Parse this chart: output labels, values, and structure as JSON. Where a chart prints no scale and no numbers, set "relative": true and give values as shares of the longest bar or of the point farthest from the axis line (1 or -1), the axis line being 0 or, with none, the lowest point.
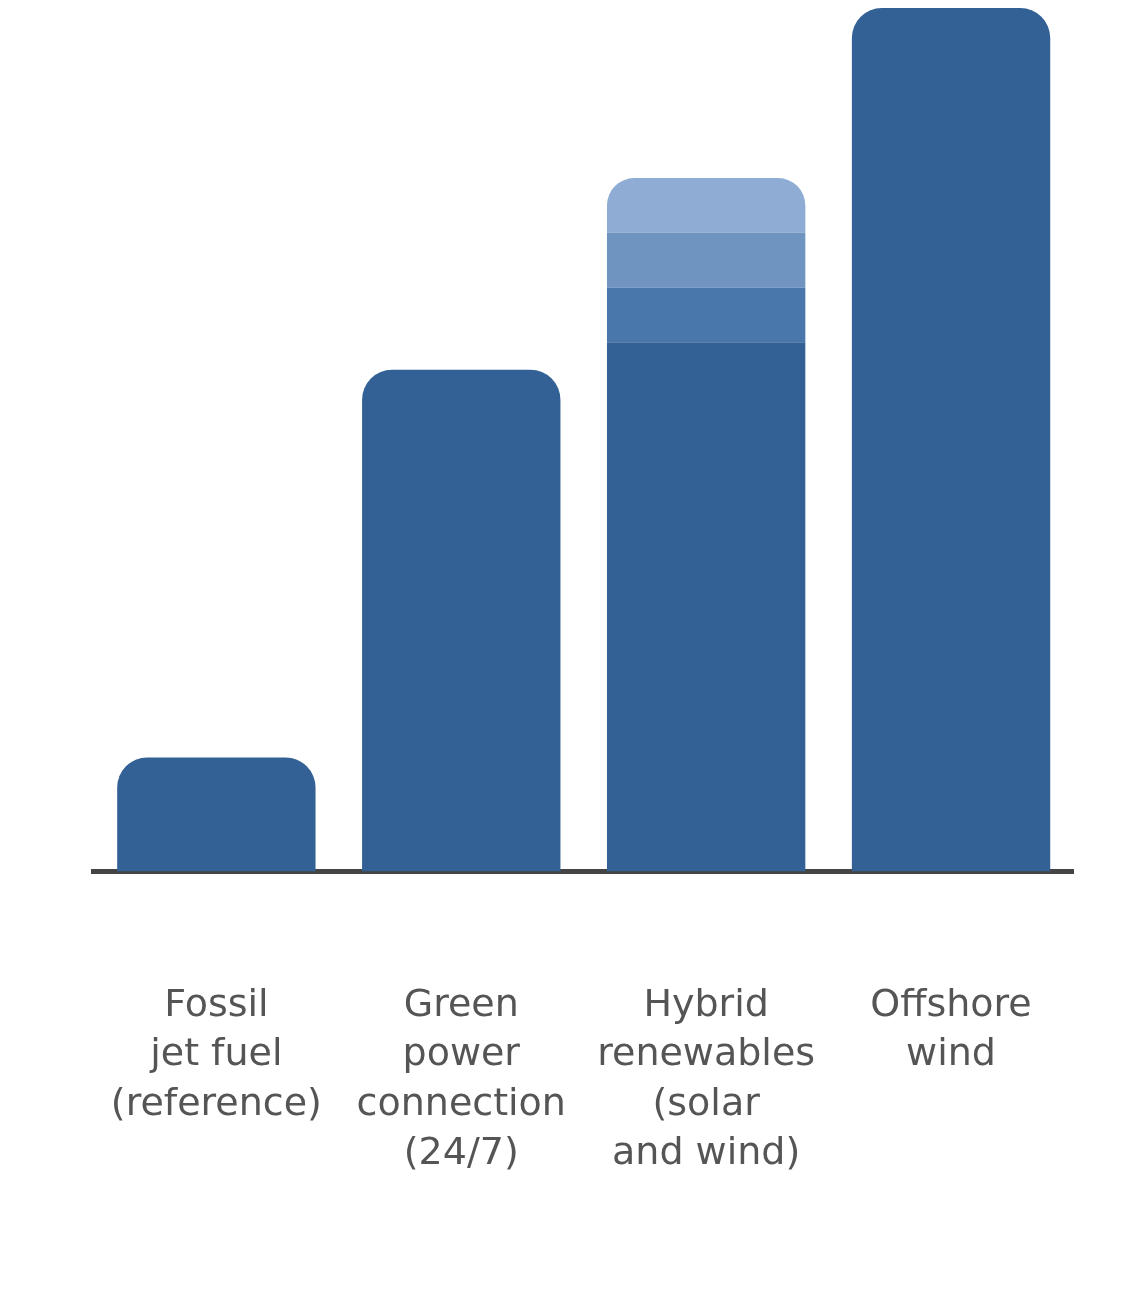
{
  "chart_data": {
    "type": "bar",
    "relative": true,
    "stacked": true,
    "legend": false,
    "grid": false,
    "categories": [
      "Fossil jet fuel (reference)",
      "Green power connection (24/7)",
      "Hybrid renewables (solar and wind)",
      "Offshore wind"
    ],
    "series": [
      {
        "color": "#336195",
        "values": [
          0.132,
          0.581,
          0.613,
          1
        ]
      },
      {
        "color": "#4a77ab",
        "values": [
          null,
          null,
          0.063,
          null
        ]
      },
      {
        "color": "#6f94c0",
        "values": [
          null,
          null,
          0.064,
          null
        ]
      },
      {
        "color": "#8fadd4",
        "values": [
          null,
          null,
          0.063,
          null
        ]
      }
    ]
  }
}
